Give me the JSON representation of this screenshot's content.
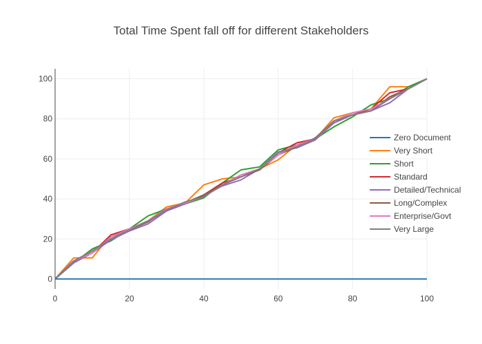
{
  "chart_data": {
    "type": "line",
    "title": "Total Time Spent fall off for different Stakeholders",
    "xlabel": "",
    "ylabel": "",
    "xlim": [
      0,
      100
    ],
    "ylim": [
      -5,
      105
    ],
    "x_ticks": [
      0,
      20,
      40,
      60,
      80,
      100
    ],
    "y_ticks": [
      0,
      20,
      40,
      60,
      80,
      100
    ],
    "grid": true,
    "legend_position": "right",
    "series": [
      {
        "name": "Zero Document",
        "color": "#1f77b4",
        "x": [
          0,
          100
        ],
        "y": [
          0,
          0
        ]
      },
      {
        "name": "Very Short",
        "color": "#ff7f0e",
        "x": [
          0,
          5,
          10,
          15,
          20,
          25,
          30,
          35,
          40,
          45,
          50,
          55,
          60,
          65,
          70,
          75,
          80,
          85,
          90,
          95,
          100
        ],
        "y": [
          0,
          10.5,
          10.5,
          22,
          25,
          29,
          36,
          38,
          47,
          50,
          51,
          55,
          59.5,
          67,
          70,
          80.5,
          83,
          85,
          96,
          96,
          100
        ]
      },
      {
        "name": "Short",
        "color": "#2ca02c",
        "x": [
          0,
          5,
          10,
          15,
          20,
          25,
          30,
          35,
          40,
          45,
          50,
          55,
          60,
          65,
          70,
          75,
          80,
          85,
          90,
          95,
          100
        ],
        "y": [
          0,
          8,
          15,
          19,
          25,
          31.5,
          35,
          37.5,
          40.5,
          48,
          54.5,
          56,
          64.5,
          67,
          70,
          76,
          81,
          87,
          90,
          96,
          100
        ]
      },
      {
        "name": "Standard",
        "color": "#d62728",
        "x": [
          0,
          5,
          10,
          15,
          20,
          25,
          30,
          35,
          40,
          45,
          50,
          55,
          60,
          65,
          70,
          75,
          80,
          85,
          90,
          95,
          100
        ],
        "y": [
          0,
          9,
          13,
          22,
          25,
          29,
          34,
          38,
          42,
          48,
          51,
          55,
          63,
          68,
          70,
          78,
          82,
          85,
          93,
          95,
          100
        ]
      },
      {
        "name": "Detailed/Technical",
        "color": "#9467bd",
        "x": [
          0,
          5,
          10,
          15,
          20,
          25,
          30,
          35,
          40,
          45,
          50,
          55,
          60,
          65,
          70,
          75,
          80,
          85,
          90,
          95,
          100
        ],
        "y": [
          0,
          8,
          13,
          19.5,
          24,
          27.5,
          34,
          37.5,
          41.5,
          46.5,
          49.5,
          55,
          63.5,
          65.5,
          69.5,
          78,
          82,
          84,
          88,
          95,
          100
        ]
      },
      {
        "name": "Long/Complex",
        "color": "#8c564b",
        "x": [
          0,
          5,
          10,
          15,
          20,
          25,
          30,
          35,
          40,
          45,
          50,
          55,
          60,
          65,
          70,
          75,
          80,
          85,
          90,
          95,
          100
        ],
        "y": [
          0,
          9,
          13,
          21,
          24.5,
          28.5,
          35,
          38,
          42,
          47,
          51,
          54.5,
          62,
          66,
          70.5,
          79,
          82,
          84,
          91,
          95,
          100
        ]
      },
      {
        "name": "Enterprise/Govt",
        "color": "#e377c2",
        "x": [
          0,
          5,
          10,
          15,
          20,
          25,
          30,
          35,
          40,
          45,
          50,
          55,
          60,
          65,
          70,
          75,
          80,
          85,
          90,
          95,
          100
        ],
        "y": [
          0,
          9,
          13,
          21,
          25,
          29,
          35,
          38,
          41,
          47,
          52,
          55,
          62,
          67,
          70,
          79,
          83,
          85,
          90,
          95,
          100
        ]
      },
      {
        "name": "Very Large",
        "color": "#7f7f7f",
        "x": [
          0,
          5,
          10,
          15,
          20,
          25,
          30,
          35,
          40,
          45,
          50,
          55,
          60,
          65,
          70,
          75,
          80,
          85,
          90,
          95,
          100
        ],
        "y": [
          0,
          9,
          14,
          20,
          24.5,
          29,
          34.5,
          38.5,
          41,
          47,
          51,
          55,
          63,
          66,
          70,
          79,
          82,
          84,
          90,
          95,
          100
        ]
      }
    ]
  }
}
